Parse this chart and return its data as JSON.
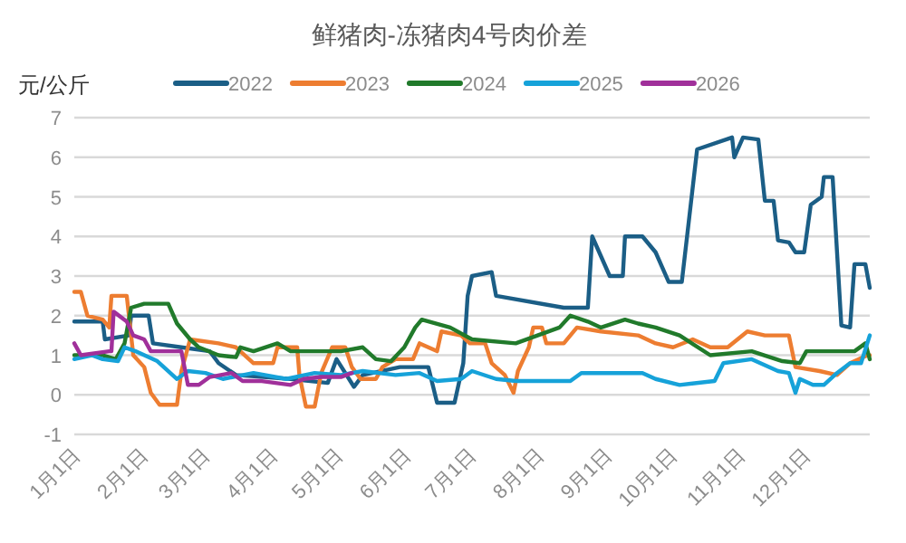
{
  "chart_data": {
    "type": "line",
    "title": "鲜猪肉-冻猪肉4号肉价差",
    "ylabel": "元/公斤",
    "grid": "y",
    "legend": "top",
    "xlim": [
      "--01-01",
      "--12-31"
    ],
    "xticks": [
      {
        "value": "--01-01",
        "label": "1月1日"
      },
      {
        "value": "--02-01",
        "label": "2月1日"
      },
      {
        "value": "--03-01",
        "label": "3月1日"
      },
      {
        "value": "--04-01",
        "label": "4月1日"
      },
      {
        "value": "--05-01",
        "label": "5月1日"
      },
      {
        "value": "--06-01",
        "label": "6月1日"
      },
      {
        "value": "--07-01",
        "label": "7月1日"
      },
      {
        "value": "--08-01",
        "label": "8月1日"
      },
      {
        "value": "--09-01",
        "label": "9月1日"
      },
      {
        "value": "--10-01",
        "label": "10月1日"
      },
      {
        "value": "--11-01",
        "label": "11月1日"
      },
      {
        "value": "--12-01",
        "label": "12月1日"
      }
    ],
    "ylim": [
      -1,
      7
    ],
    "yticks": [
      -1,
      0,
      1,
      2,
      3,
      4,
      5,
      6,
      7
    ],
    "series": [
      {
        "name": "2022",
        "color": "#1b5e86",
        "x": [
          "--01-01",
          "--01-14",
          "--01-15",
          "--01-26",
          "--01-27",
          "--02-04",
          "--02-06",
          "--02-19",
          "--03-04",
          "--03-08",
          "--03-16",
          "--04-10",
          "--04-27",
          "--05-01",
          "--05-09",
          "--05-13",
          "--05-30",
          "--06-12",
          "--06-16",
          "--06-24",
          "--06-28",
          "--06-30",
          "--07-02",
          "--07-11",
          "--07-13",
          "--08-13",
          "--08-24",
          "--08-26",
          "--09-03",
          "--09-09",
          "--09-10",
          "--09-18",
          "--09-24",
          "--09-30",
          "--10-06",
          "--10-13",
          "--10-29",
          "--10-30",
          "--11-03",
          "--11-10",
          "--11-13",
          "--11-17",
          "--11-19",
          "--11-24",
          "--11-27",
          "--12-01",
          "--12-04",
          "--12-09",
          "--12-10",
          "--12-14",
          "--12-18",
          "--12-22",
          "--12-24",
          "--12-29",
          "--12-31"
        ],
        "values": [
          1.85,
          1.85,
          1.4,
          1.5,
          2.0,
          2.0,
          1.3,
          1.2,
          1.1,
          0.8,
          0.5,
          0.4,
          0.3,
          0.9,
          0.2,
          0.5,
          0.7,
          0.7,
          -0.2,
          -0.2,
          0.8,
          2.5,
          3.0,
          3.1,
          2.5,
          2.2,
          2.2,
          4.0,
          3.0,
          3.0,
          4.0,
          4.0,
          3.6,
          2.85,
          2.85,
          6.2,
          6.5,
          6.0,
          6.5,
          6.45,
          4.9,
          4.9,
          3.9,
          3.85,
          3.6,
          3.6,
          4.8,
          5.0,
          5.5,
          5.5,
          1.75,
          1.7,
          3.3,
          3.3,
          2.7
        ]
      },
      {
        "name": "2023",
        "color": "#ed7d31",
        "x": [
          "--01-01",
          "--01-04",
          "--01-07",
          "--01-14",
          "--01-17",
          "--01-18",
          "--01-25",
          "--01-28",
          "--02-02",
          "--02-05",
          "--02-09",
          "--02-17",
          "--02-19",
          "--02-23",
          "--03-08",
          "--03-16",
          "--03-24",
          "--04-02",
          "--04-04",
          "--04-13",
          "--04-14",
          "--04-17",
          "--04-21",
          "--04-24",
          "--04-29",
          "--05-05",
          "--05-08",
          "--05-12",
          "--05-19",
          "--05-22",
          "--05-28",
          "--06-05",
          "--06-08",
          "--06-16",
          "--06-18",
          "--06-27",
          "--07-01",
          "--07-08",
          "--07-11",
          "--07-17",
          "--07-21",
          "--07-23",
          "--07-28",
          "--07-30",
          "--08-03",
          "--08-05",
          "--08-13",
          "--08-19",
          "--08-30",
          "--09-16",
          "--09-24",
          "--10-02",
          "--10-11",
          "--10-19",
          "--10-27",
          "--11-05",
          "--11-13",
          "--11-24",
          "--11-27",
          "--12-08",
          "--12-16",
          "--12-22",
          "--12-30",
          "--12-31"
        ],
        "values": [
          2.6,
          2.6,
          2.0,
          1.9,
          1.7,
          2.5,
          2.5,
          1.0,
          0.7,
          0.05,
          -0.25,
          -0.25,
          0.6,
          1.4,
          1.3,
          1.2,
          0.8,
          0.8,
          1.2,
          1.2,
          0.5,
          -0.3,
          -0.3,
          0.55,
          1.2,
          1.2,
          0.7,
          0.4,
          0.4,
          0.7,
          0.9,
          0.9,
          1.3,
          1.1,
          1.6,
          1.5,
          1.3,
          1.3,
          0.8,
          0.5,
          0.05,
          0.6,
          1.2,
          1.7,
          1.7,
          1.3,
          1.3,
          1.7,
          1.6,
          1.5,
          1.3,
          1.2,
          1.4,
          1.2,
          1.2,
          1.6,
          1.5,
          1.5,
          0.7,
          0.6,
          0.5,
          0.8,
          1.0,
          1.0
        ]
      },
      {
        "name": "2024",
        "color": "#217a2b",
        "x": [
          "--01-01",
          "--01-14",
          "--01-20",
          "--01-24",
          "--01-27",
          "--02-02",
          "--02-13",
          "--02-17",
          "--02-23",
          "--02-27",
          "--03-08",
          "--03-16",
          "--03-18",
          "--03-24",
          "--04-04",
          "--04-10",
          "--05-03",
          "--05-13",
          "--05-19",
          "--05-26",
          "--06-01",
          "--06-06",
          "--06-09",
          "--06-22",
          "--07-02",
          "--07-22",
          "--08-11",
          "--08-16",
          "--08-24",
          "--08-30",
          "--09-10",
          "--09-16",
          "--09-24",
          "--10-05",
          "--10-19",
          "--11-07",
          "--11-21",
          "--11-29",
          "--12-02",
          "--12-24",
          "--12-29",
          "--12-31"
        ],
        "values": [
          1.0,
          1.0,
          0.9,
          1.3,
          2.2,
          2.3,
          2.3,
          1.8,
          1.4,
          1.2,
          1.0,
          0.95,
          1.2,
          1.1,
          1.3,
          1.1,
          1.1,
          1.2,
          0.9,
          0.85,
          1.2,
          1.7,
          1.9,
          1.7,
          1.4,
          1.3,
          1.7,
          2.0,
          1.85,
          1.7,
          1.9,
          1.8,
          1.7,
          1.5,
          1.0,
          1.1,
          0.85,
          0.8,
          1.1,
          1.1,
          1.3,
          0.9
        ]
      },
      {
        "name": "2025",
        "color": "#16a2d9",
        "x": [
          "--01-01",
          "--01-09",
          "--01-14",
          "--01-21",
          "--01-24",
          "--01-29",
          "--02-08",
          "--02-17",
          "--02-22",
          "--03-02",
          "--03-10",
          "--03-24",
          "--04-08",
          "--04-21",
          "--05-03",
          "--05-13",
          "--05-28",
          "--06-08",
          "--06-16",
          "--06-27",
          "--07-02",
          "--07-13",
          "--07-22",
          "--08-16",
          "--08-21",
          "--09-18",
          "--09-24",
          "--10-05",
          "--10-21",
          "--10-25",
          "--11-07",
          "--11-19",
          "--11-24",
          "--11-27",
          "--11-29",
          "--12-05",
          "--12-10",
          "--12-16",
          "--12-22",
          "--12-27",
          "--12-31"
        ],
        "values": [
          0.9,
          1.0,
          0.9,
          0.85,
          1.2,
          1.1,
          0.85,
          0.4,
          0.6,
          0.55,
          0.4,
          0.55,
          0.4,
          0.55,
          0.5,
          0.6,
          0.5,
          0.55,
          0.35,
          0.4,
          0.6,
          0.4,
          0.35,
          0.35,
          0.55,
          0.55,
          0.4,
          0.25,
          0.35,
          0.8,
          0.9,
          0.6,
          0.55,
          0.05,
          0.4,
          0.25,
          0.25,
          0.55,
          0.8,
          0.8,
          1.5
        ]
      },
      {
        "name": "2026",
        "color": "#a0309a",
        "x": [
          "--01-01",
          "--01-04",
          "--01-17",
          "--01-18",
          "--01-19",
          "--01-25",
          "--01-28",
          "--02-02",
          "--02-05",
          "--02-19",
          "--02-22",
          "--02-27",
          "--03-04",
          "--03-14",
          "--03-19",
          "--03-27",
          "--04-10",
          "--04-16",
          "--04-24",
          "--05-03",
          "--05-08"
        ],
        "values": [
          1.3,
          1.0,
          1.1,
          1.1,
          2.1,
          1.85,
          1.5,
          1.4,
          1.1,
          1.1,
          0.25,
          0.25,
          0.45,
          0.55,
          0.35,
          0.35,
          0.25,
          0.4,
          0.45,
          0.45,
          0.55
        ]
      }
    ]
  }
}
